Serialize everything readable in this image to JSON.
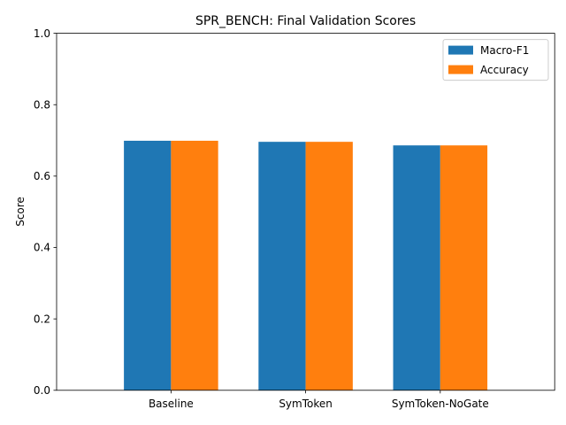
{
  "chart_data": {
    "type": "bar",
    "title": "SPR_BENCH: Final Validation Scores",
    "xlabel": "",
    "ylabel": "Score",
    "ylim": [
      0,
      1.0
    ],
    "yticks": [
      "0.0",
      "0.2",
      "0.4",
      "0.6",
      "0.8",
      "1.0"
    ],
    "categories": [
      "Baseline",
      "SymToken",
      "SymToken-NoGate"
    ],
    "series": [
      {
        "name": "Macro-F1",
        "color": "#1f77b4",
        "values": [
          0.699,
          0.696,
          0.686
        ]
      },
      {
        "name": "Accuracy",
        "color": "#ff7f0e",
        "values": [
          0.699,
          0.696,
          0.686
        ]
      }
    ],
    "legend_position": "top-right",
    "grid": false
  }
}
